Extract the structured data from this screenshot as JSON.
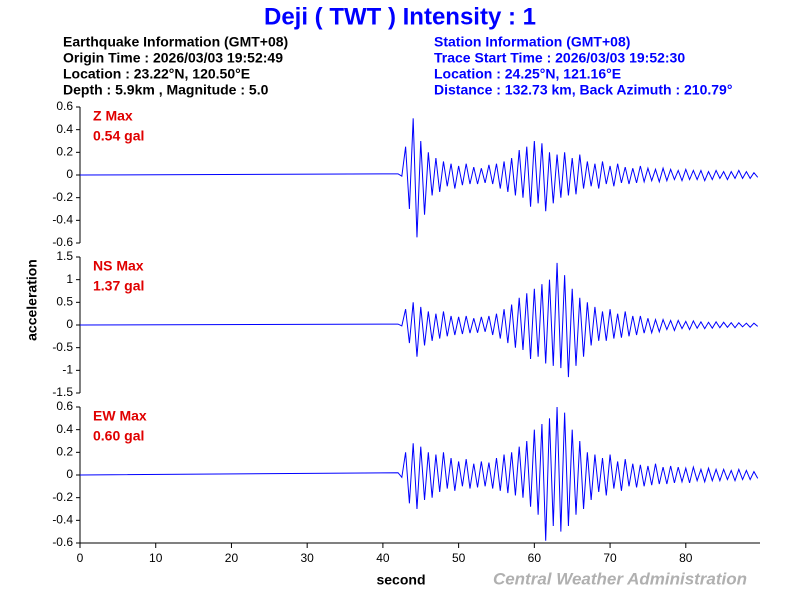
{
  "title": "Deji  ( TWT )  Intensity : 1",
  "earthquake_info": [
    "Earthquake Information  (GMT+08)",
    "Origin Time : 2026/03/03 19:52:49",
    "Location : 23.22°N, 120.50°E",
    "Depth : 5.9km , Magnitude : 5.0"
  ],
  "station_info": [
    "Station Information  (GMT+08)",
    "Trace Start Time : 2026/03/03 19:52:30",
    "Location : 24.25°N, 121.16°E",
    "Distance : 132.73 km, Back Azimuth : 210.79°"
  ],
  "credit": "Central Weather Administration",
  "chart_data": {
    "type": "line",
    "xlabel": "second",
    "ylabel": "acceleration",
    "xlim": [
      0,
      89.8
    ],
    "xticks": [
      0,
      10,
      20,
      30,
      40,
      50,
      60,
      70,
      80
    ],
    "x": [
      0,
      42,
      42.5,
      43,
      43.5,
      44,
      44.5,
      45,
      45.5,
      46,
      46.5,
      47,
      47.5,
      48,
      48.5,
      49,
      49.5,
      50,
      50.5,
      51,
      51.5,
      52,
      52.5,
      53,
      53.5,
      54,
      54.5,
      55,
      55.5,
      56,
      56.5,
      57,
      57.5,
      58,
      58.5,
      59,
      59.5,
      60,
      60.5,
      61,
      61.5,
      62,
      62.5,
      63,
      63.5,
      64,
      64.5,
      65,
      65.5,
      66,
      66.5,
      67,
      67.5,
      68,
      68.5,
      69,
      69.5,
      70,
      70.5,
      71,
      71.5,
      72,
      72.5,
      73,
      73.5,
      74,
      74.5,
      75,
      75.5,
      76,
      76.5,
      77,
      77.5,
      78,
      78.5,
      79,
      79.5,
      80,
      80.5,
      81,
      81.5,
      82,
      82.5,
      83,
      83.5,
      84,
      84.5,
      85,
      85.5,
      86,
      86.5,
      87,
      87.5,
      88,
      88.5,
      89,
      89.5
    ],
    "series": [
      {
        "name": "Z Max",
        "max_label": "0.54 gal",
        "color": "#0000ff",
        "ylim": [
          -0.6,
          0.6
        ],
        "yticks": [
          -0.6,
          -0.4,
          -0.2,
          0,
          0.2,
          0.4,
          0.6
        ],
        "values": [
          0,
          0.01,
          -0.01,
          0.25,
          -0.3,
          0.5,
          -0.55,
          0.3,
          -0.35,
          0.2,
          -0.18,
          0.15,
          -0.15,
          0.12,
          -0.1,
          0.1,
          -0.12,
          0.08,
          -0.09,
          0.1,
          -0.08,
          0.07,
          -0.08,
          0.06,
          -0.07,
          0.09,
          -0.08,
          0.1,
          -0.12,
          0.12,
          -0.15,
          0.15,
          -0.18,
          0.22,
          -0.2,
          0.25,
          -0.28,
          0.3,
          -0.25,
          0.28,
          -0.32,
          0.2,
          -0.25,
          0.18,
          -0.2,
          0.2,
          -0.18,
          0.15,
          -0.17,
          0.18,
          -0.12,
          0.12,
          -0.1,
          0.1,
          -0.12,
          0.12,
          -0.08,
          0.08,
          -0.1,
          0.1,
          -0.07,
          0.07,
          -0.08,
          0.06,
          -0.07,
          0.08,
          -0.06,
          0.06,
          -0.05,
          0.05,
          -0.06,
          0.06,
          -0.05,
          0.05,
          -0.04,
          0.04,
          -0.05,
          0.05,
          -0.04,
          0.04,
          -0.04,
          0.04,
          -0.05,
          0.03,
          -0.04,
          0.04,
          -0.03,
          0.03,
          -0.04,
          0.03,
          -0.03,
          0.04,
          -0.03,
          0.03,
          -0.03,
          0.02,
          -0.02
        ]
      },
      {
        "name": "NS Max",
        "max_label": "1.37 gal",
        "color": "#0000ff",
        "ylim": [
          -1.5,
          1.5
        ],
        "yticks": [
          -1.5,
          -1,
          -0.5,
          0,
          0.5,
          1,
          1.5
        ],
        "values": [
          0,
          0.02,
          -0.02,
          0.35,
          -0.4,
          0.5,
          -0.7,
          0.4,
          -0.45,
          0.3,
          -0.35,
          0.25,
          -0.3,
          0.3,
          -0.25,
          0.2,
          -0.22,
          0.18,
          -0.2,
          0.2,
          -0.18,
          0.15,
          -0.17,
          0.18,
          -0.15,
          0.2,
          -0.22,
          0.25,
          -0.3,
          0.35,
          -0.4,
          0.45,
          -0.5,
          0.6,
          -0.55,
          0.7,
          -0.75,
          0.8,
          -0.7,
          0.9,
          -0.85,
          1.0,
          -0.9,
          1.37,
          -0.95,
          1.1,
          -1.15,
          0.8,
          -0.9,
          0.6,
          -0.7,
          0.5,
          -0.45,
          0.4,
          -0.35,
          0.3,
          -0.35,
          0.35,
          -0.3,
          0.25,
          -0.28,
          0.3,
          -0.25,
          0.2,
          -0.22,
          0.2,
          -0.18,
          0.15,
          -0.17,
          0.12,
          -0.15,
          0.12,
          -0.1,
          0.1,
          -0.12,
          0.1,
          -0.08,
          0.08,
          -0.1,
          0.09,
          -0.07,
          0.07,
          -0.08,
          0.06,
          -0.07,
          0.07,
          -0.06,
          0.06,
          -0.05,
          0.05,
          -0.06,
          0.05,
          -0.04,
          0.04,
          -0.05,
          0.04,
          -0.03
        ]
      },
      {
        "name": "EW Max",
        "max_label": "0.60 gal",
        "color": "#0000ff",
        "ylim": [
          -0.6,
          0.6
        ],
        "yticks": [
          -0.6,
          -0.4,
          -0.2,
          0,
          0.2,
          0.4,
          0.6
        ],
        "values": [
          0,
          0.02,
          -0.02,
          0.2,
          -0.25,
          0.28,
          -0.3,
          0.25,
          -0.22,
          0.2,
          -0.2,
          0.18,
          -0.15,
          0.2,
          -0.12,
          0.15,
          -0.14,
          0.12,
          -0.1,
          0.14,
          -0.12,
          0.1,
          -0.11,
          0.12,
          -0.1,
          0.11,
          -0.12,
          0.15,
          -0.14,
          0.18,
          -0.16,
          0.2,
          -0.18,
          0.25,
          -0.2,
          0.3,
          -0.28,
          0.4,
          -0.35,
          0.45,
          -0.58,
          0.5,
          -0.45,
          0.6,
          -0.5,
          0.55,
          -0.45,
          0.4,
          -0.35,
          0.3,
          -0.3,
          0.2,
          -0.22,
          0.18,
          -0.15,
          0.15,
          -0.18,
          0.18,
          -0.12,
          0.12,
          -0.14,
          0.14,
          -0.1,
          0.1,
          -0.11,
          0.09,
          -0.1,
          0.08,
          -0.09,
          0.1,
          -0.08,
          0.07,
          -0.08,
          0.08,
          -0.07,
          0.07,
          -0.06,
          0.06,
          -0.07,
          0.07,
          -0.05,
          0.05,
          -0.06,
          0.06,
          -0.05,
          0.05,
          -0.05,
          0.05,
          -0.04,
          0.04,
          -0.05,
          0.05,
          -0.04,
          0.04,
          -0.04,
          0.03,
          -0.03
        ]
      }
    ]
  }
}
